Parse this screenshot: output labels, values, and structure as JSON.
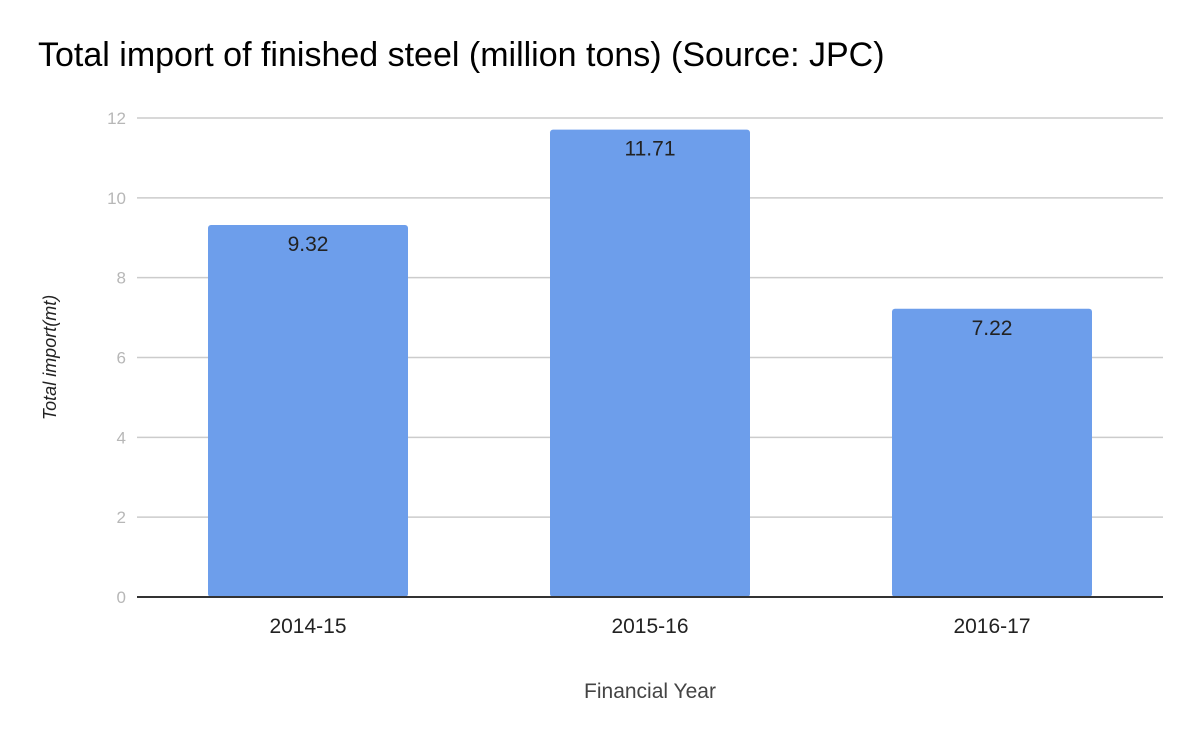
{
  "chart_data": {
    "type": "bar",
    "title": "Total import of finished steel (million tons) (Source: JPC)",
    "xlabel": "Financial Year",
    "ylabel": "Total import(mt)",
    "categories": [
      "2014-15",
      "2015-16",
      "2016-17"
    ],
    "values": [
      9.32,
      11.71,
      7.22
    ],
    "value_labels": [
      "9.32",
      "11.71",
      "7.22"
    ],
    "ylim": [
      0,
      12
    ],
    "yticks": [
      0,
      2,
      4,
      6,
      8,
      10,
      12
    ],
    "grid": true,
    "legend": "none",
    "colors": {
      "bar": "#6d9eeb",
      "grid": "#cccccc",
      "axis": "#333333",
      "tick_label": "#b7b7b7",
      "text": "#222222"
    }
  }
}
